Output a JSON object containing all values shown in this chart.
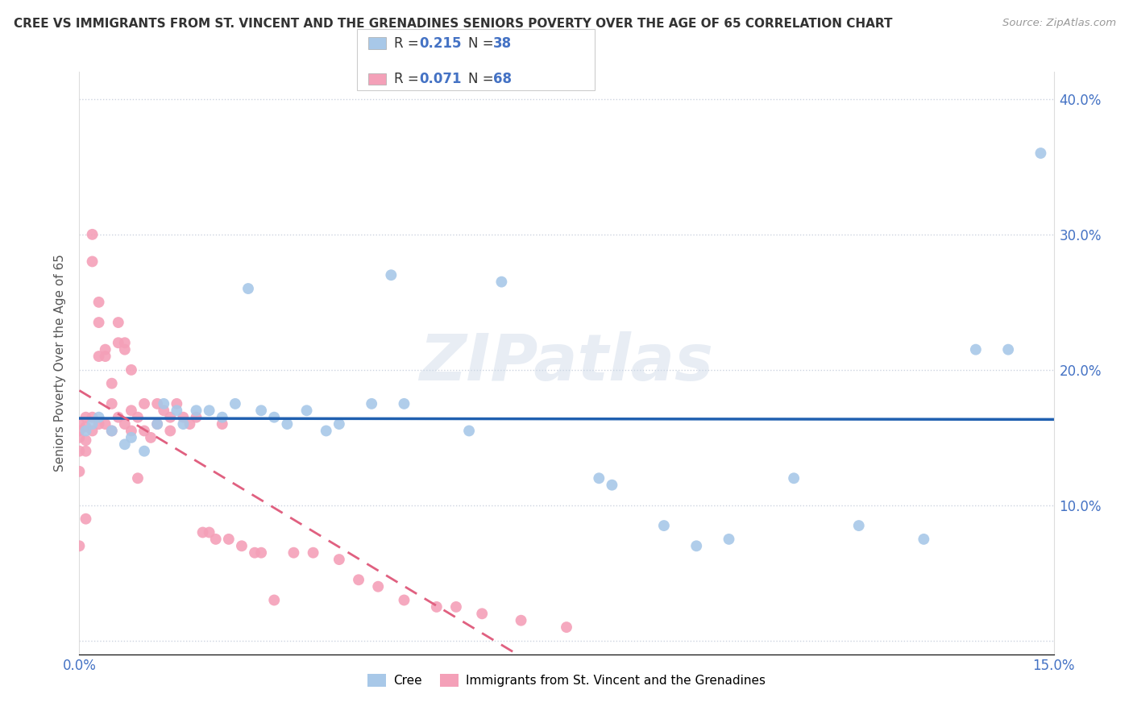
{
  "title": "CREE VS IMMIGRANTS FROM ST. VINCENT AND THE GRENADINES SENIORS POVERTY OVER THE AGE OF 65 CORRELATION CHART",
  "source": "Source: ZipAtlas.com",
  "ylabel": "Seniors Poverty Over the Age of 65",
  "xlabel": "",
  "xlim": [
    0.0,
    0.15
  ],
  "ylim": [
    -0.01,
    0.42
  ],
  "yticks": [
    0.0,
    0.1,
    0.2,
    0.3,
    0.4
  ],
  "ytick_labels": [
    "",
    "10.0%",
    "20.0%",
    "30.0%",
    "40.0%"
  ],
  "xticks": [
    0.0,
    0.05,
    0.1,
    0.15
  ],
  "xtick_labels": [
    "0.0%",
    "",
    "",
    "15.0%"
  ],
  "watermark": "ZIPatlas",
  "cree_color": "#a8c8e8",
  "svg_color": "#f4a0b8",
  "cree_line_color": "#2060b0",
  "svg_line_color": "#e06080",
  "background_color": "#ffffff",
  "cree_points_x": [
    0.001,
    0.002,
    0.003,
    0.005,
    0.007,
    0.008,
    0.01,
    0.012,
    0.013,
    0.015,
    0.016,
    0.018,
    0.02,
    0.022,
    0.024,
    0.026,
    0.028,
    0.03,
    0.032,
    0.035,
    0.038,
    0.04,
    0.045,
    0.048,
    0.05,
    0.06,
    0.065,
    0.08,
    0.082,
    0.09,
    0.095,
    0.1,
    0.11,
    0.12,
    0.13,
    0.138,
    0.143,
    0.148
  ],
  "cree_points_y": [
    0.155,
    0.16,
    0.165,
    0.155,
    0.145,
    0.15,
    0.14,
    0.16,
    0.175,
    0.17,
    0.16,
    0.17,
    0.17,
    0.165,
    0.175,
    0.26,
    0.17,
    0.165,
    0.16,
    0.17,
    0.155,
    0.16,
    0.175,
    0.27,
    0.175,
    0.155,
    0.265,
    0.12,
    0.115,
    0.085,
    0.07,
    0.075,
    0.12,
    0.085,
    0.075,
    0.215,
    0.215,
    0.36
  ],
  "svg_points_x": [
    0.0,
    0.0,
    0.0,
    0.0,
    0.0,
    0.0,
    0.001,
    0.001,
    0.001,
    0.001,
    0.001,
    0.002,
    0.002,
    0.002,
    0.002,
    0.003,
    0.003,
    0.003,
    0.003,
    0.004,
    0.004,
    0.004,
    0.005,
    0.005,
    0.005,
    0.006,
    0.006,
    0.006,
    0.007,
    0.007,
    0.007,
    0.008,
    0.008,
    0.008,
    0.009,
    0.009,
    0.01,
    0.01,
    0.011,
    0.012,
    0.012,
    0.013,
    0.014,
    0.014,
    0.015,
    0.016,
    0.017,
    0.018,
    0.019,
    0.02,
    0.021,
    0.022,
    0.023,
    0.025,
    0.027,
    0.028,
    0.03,
    0.033,
    0.036,
    0.04,
    0.043,
    0.046,
    0.05,
    0.055,
    0.058,
    0.062,
    0.068,
    0.075
  ],
  "svg_points_y": [
    0.16,
    0.155,
    0.15,
    0.14,
    0.125,
    0.07,
    0.165,
    0.158,
    0.148,
    0.14,
    0.09,
    0.3,
    0.28,
    0.165,
    0.155,
    0.25,
    0.235,
    0.21,
    0.16,
    0.215,
    0.21,
    0.16,
    0.19,
    0.175,
    0.155,
    0.235,
    0.22,
    0.165,
    0.22,
    0.215,
    0.16,
    0.2,
    0.17,
    0.155,
    0.165,
    0.12,
    0.175,
    0.155,
    0.15,
    0.175,
    0.16,
    0.17,
    0.165,
    0.155,
    0.175,
    0.165,
    0.16,
    0.165,
    0.08,
    0.08,
    0.075,
    0.16,
    0.075,
    0.07,
    0.065,
    0.065,
    0.03,
    0.065,
    0.065,
    0.06,
    0.045,
    0.04,
    0.03,
    0.025,
    0.025,
    0.02,
    0.015,
    0.01
  ]
}
